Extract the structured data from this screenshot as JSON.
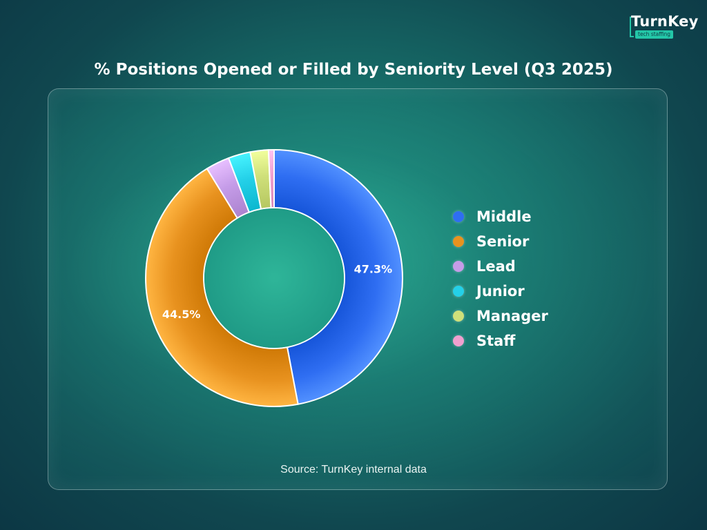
{
  "brand": {
    "name": "TurnKey",
    "tagline": "tech staffing",
    "accent_color": "#23c7a8"
  },
  "chart_data": {
    "type": "pie",
    "donut": true,
    "title": "% Positions Opened or Filled by Seniority Level (Q3 2025)",
    "categories": [
      "Middle",
      "Senior",
      "Lead",
      "Junior",
      "Manager",
      "Staff"
    ],
    "values": [
      47.3,
      44.5,
      3.0,
      2.8,
      2.3,
      0.7
    ],
    "colors": [
      "#2f6ef2",
      "#e8921f",
      "#c59ce8",
      "#24d0e8",
      "#cfe07a",
      "#f0a0cf"
    ],
    "data_labels": {
      "Middle": "47.3%",
      "Senior": "44.5%"
    },
    "legend_position": "right",
    "source": "Source: TurnKey internal data"
  }
}
